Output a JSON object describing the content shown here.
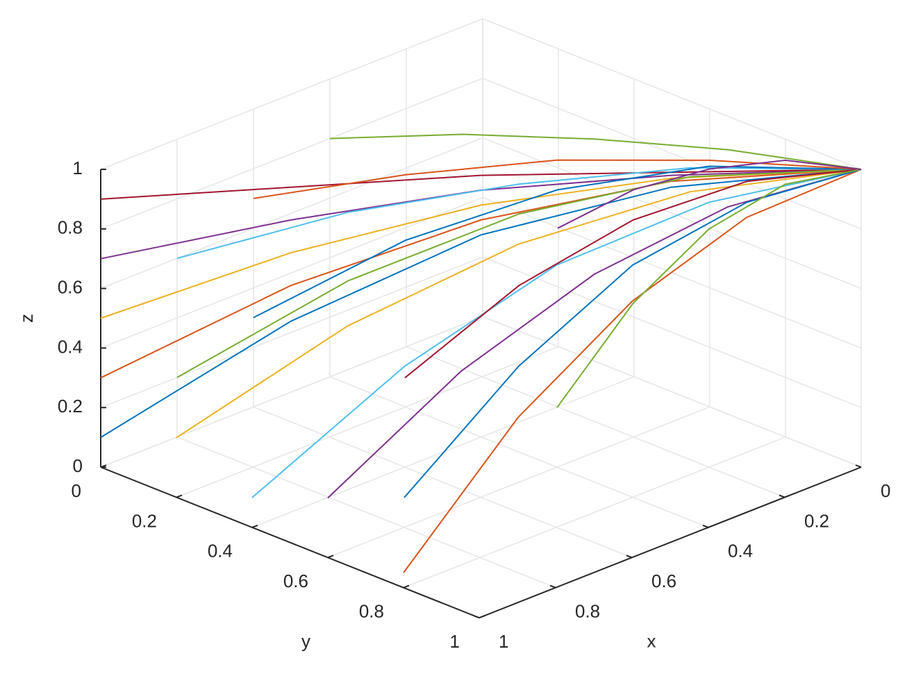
{
  "chart_data": {
    "type": "line3d",
    "xlabel": "x",
    "ylabel": "y",
    "zlabel": "z",
    "xlim": [
      0,
      1
    ],
    "ylim": [
      0,
      1
    ],
    "zlim": [
      0,
      1
    ],
    "xticks": [
      0,
      0.2,
      0.4,
      0.6,
      0.8,
      1
    ],
    "yticks": [
      0,
      0.2,
      0.4,
      0.6,
      0.8,
      1
    ],
    "zticks": [
      0,
      0.2,
      0.4,
      0.6,
      0.8,
      1
    ],
    "grid": true,
    "series": [
      {
        "color": "#0072BD",
        "x": [
          1,
          0.75,
          0.5,
          0.25,
          0
        ],
        "y": [
          0,
          0.25,
          0.5,
          0.75,
          1
        ],
        "z": [
          0.1,
          0.49,
          0.78,
          0.94,
          1
        ]
      },
      {
        "color": "#D95319",
        "x": [
          1,
          0.75,
          0.5,
          0.25,
          0
        ],
        "y": [
          0,
          0.25,
          0.5,
          0.75,
          1
        ],
        "z": [
          0.3,
          0.61,
          0.83,
          0.96,
          1
        ]
      },
      {
        "color": "#EDB120",
        "x": [
          1,
          0.75,
          0.5,
          0.25,
          0
        ],
        "y": [
          0,
          0.25,
          0.5,
          0.75,
          1
        ],
        "z": [
          0.5,
          0.72,
          0.88,
          0.97,
          1
        ]
      },
      {
        "color": "#7E2F8E",
        "x": [
          1,
          0.75,
          0.5,
          0.25,
          0
        ],
        "y": [
          0,
          0.25,
          0.5,
          0.75,
          1
        ],
        "z": [
          0.7,
          0.83,
          0.93,
          0.98,
          1
        ]
      },
      {
        "color": "#A2142F",
        "x": [
          1,
          0.75,
          0.5,
          0.25,
          0
        ],
        "y": [
          0,
          0.25,
          0.5,
          0.75,
          1
        ],
        "z": [
          0.9,
          0.94,
          0.98,
          0.99,
          1
        ]
      },
      {
        "color": "#77AC30",
        "x": [
          0.8,
          0.6,
          0.4,
          0.2,
          0
        ],
        "y": [
          0,
          0.25,
          0.5,
          0.75,
          1
        ],
        "z": [
          0.2,
          0.55,
          0.8,
          0.95,
          1
        ]
      },
      {
        "color": "#4DBEEE",
        "x": [
          0.8,
          0.6,
          0.4,
          0.2,
          0
        ],
        "y": [
          0,
          0.25,
          0.5,
          0.75,
          1
        ],
        "z": [
          0.6,
          0.78,
          0.9,
          0.98,
          1
        ]
      },
      {
        "color": "#0072BD",
        "x": [
          0.6,
          0.45,
          0.3,
          0.15,
          0
        ],
        "y": [
          0,
          0.25,
          0.5,
          0.75,
          1
        ],
        "z": [
          0.3,
          0.61,
          0.83,
          0.96,
          1
        ]
      },
      {
        "color": "#D95319",
        "x": [
          0.6,
          0.45,
          0.3,
          0.15,
          0
        ],
        "y": [
          0,
          0.25,
          0.5,
          0.75,
          1
        ],
        "z": [
          0.7,
          0.83,
          0.93,
          0.98,
          1
        ]
      },
      {
        "color": "#EDB120",
        "x": [
          1,
          0.75,
          0.5,
          0.25,
          0
        ],
        "y": [
          0.2,
          0.4,
          0.6,
          0.8,
          1
        ],
        "z": [
          0.2,
          0.55,
          0.8,
          0.95,
          1
        ]
      },
      {
        "color": "#4DBEEE",
        "x": [
          1,
          0.75,
          0.5,
          0.25,
          0
        ],
        "y": [
          0.4,
          0.55,
          0.7,
          0.85,
          1
        ],
        "z": [
          0.1,
          0.49,
          0.78,
          0.94,
          1
        ]
      },
      {
        "color": "#7E2F8E",
        "x": [
          1,
          0.75,
          0.5,
          0.25,
          0
        ],
        "y": [
          0.6,
          0.7,
          0.8,
          0.9,
          1
        ],
        "z": [
          0.2,
          0.55,
          0.8,
          0.95,
          1
        ]
      },
      {
        "color": "#D95319",
        "x": [
          1,
          0.75,
          0.5,
          0.25,
          0
        ],
        "y": [
          0.8,
          0.85,
          0.9,
          0.95,
          1
        ],
        "z": [
          0.05,
          0.47,
          0.76,
          0.94,
          1
        ]
      },
      {
        "color": "#77AC30",
        "x": [
          0.4,
          0.3,
          0.2,
          0.1,
          0
        ],
        "y": [
          0,
          0.25,
          0.5,
          0.75,
          1
        ],
        "z": [
          0.8,
          0.89,
          0.95,
          0.99,
          1
        ]
      },
      {
        "color": "#A2142F",
        "x": [
          0.6,
          0.45,
          0.3,
          0.15,
          0
        ],
        "y": [
          0.4,
          0.55,
          0.7,
          0.85,
          1
        ],
        "z": [
          0.3,
          0.61,
          0.83,
          0.96,
          1
        ]
      },
      {
        "color": "#0072BD",
        "x": [
          0.8,
          0.6,
          0.4,
          0.2,
          0
        ],
        "y": [
          0.6,
          0.7,
          0.8,
          0.9,
          1
        ],
        "z": [
          0.1,
          0.49,
          0.78,
          0.94,
          1
        ]
      },
      {
        "color": "#77AC30",
        "x": [
          0.4,
          0.3,
          0.2,
          0.1,
          0
        ],
        "y": [
          0.6,
          0.7,
          0.8,
          0.9,
          1
        ],
        "z": [
          0.2,
          0.55,
          0.8,
          0.95,
          1
        ]
      },
      {
        "color": "#7E2F8E",
        "x": [
          0.2,
          0.15,
          0.1,
          0.05,
          0
        ],
        "y": [
          0.4,
          0.55,
          0.7,
          0.85,
          1
        ],
        "z": [
          0.6,
          0.78,
          0.9,
          0.98,
          1
        ]
      }
    ]
  }
}
